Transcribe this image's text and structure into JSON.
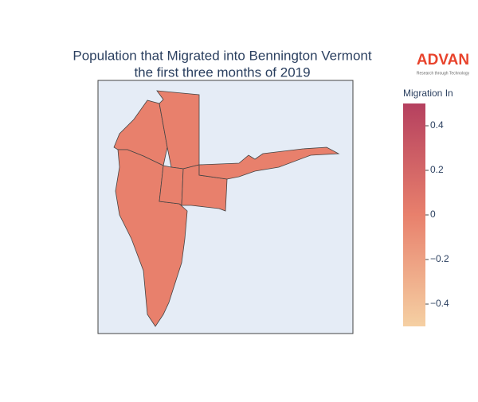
{
  "chart_data": {
    "type": "choropleth",
    "title": [
      "Population that Migrated into Bennington Vermont",
      "the first three months of 2019"
    ],
    "values": [
      0,
      0,
      0,
      0,
      0,
      0
    ],
    "colorbar": {
      "title": "Migration In",
      "lim": [
        -0.5,
        0.5
      ],
      "ticks": [
        0.4,
        0.2,
        0,
        {
          "value": -0.2,
          "label": "−0.2"
        },
        {
          "value": -0.4,
          "label": "−0.4"
        }
      ],
      "colorscale": [
        "#f5d0a3",
        "#e8806c",
        "#b5405f"
      ]
    },
    "logo": {
      "name": "ADVAN",
      "tagline": "Research through Technology"
    }
  }
}
